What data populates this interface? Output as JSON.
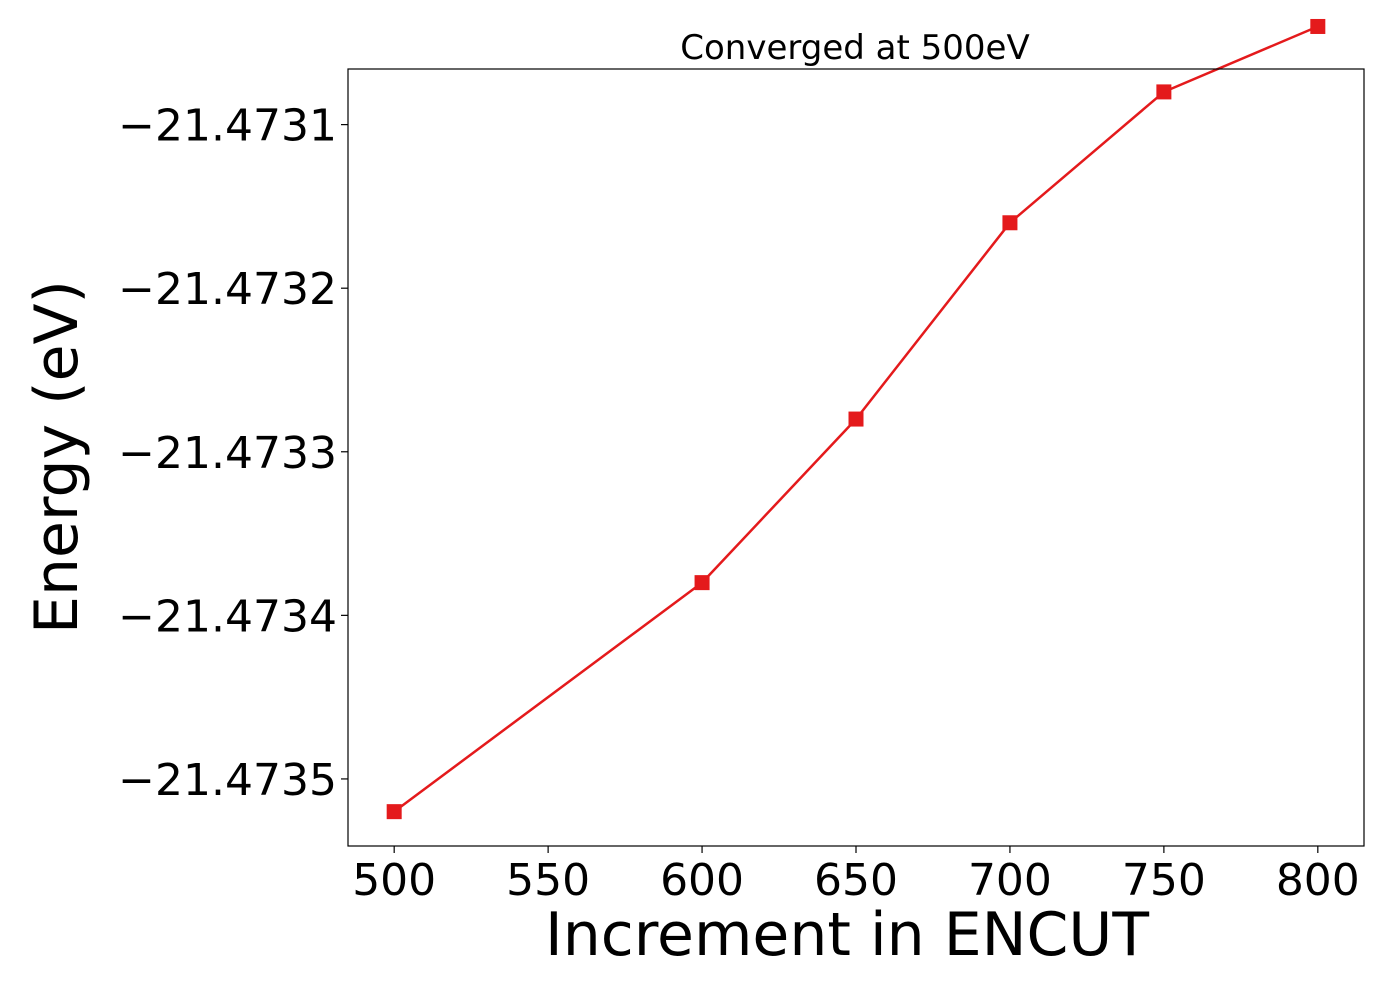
{
  "chart_data": {
    "type": "line",
    "title": "Converged at 500eV",
    "xlabel": "Increment in ENCUT",
    "ylabel": "Energy (eV)",
    "x": [
      500,
      600,
      650,
      700,
      750,
      800
    ],
    "series": [
      {
        "name": "",
        "values": [
          -21.47352,
          -21.47338,
          -21.47328,
          -21.47316,
          -21.47308,
          -21.47304
        ],
        "color": "#e41a1c",
        "marker": "square"
      }
    ],
    "xticks": [
      500,
      550,
      600,
      650,
      700,
      750,
      800
    ],
    "xtick_labels": [
      "500",
      "550",
      "600",
      "650",
      "700",
      "750",
      "800"
    ],
    "yticks": [
      -21.4735,
      -21.4734,
      -21.4733,
      -21.4732,
      -21.4731
    ],
    "ytick_labels": [
      "−21.4735",
      "−21.4734",
      "−21.4733",
      "−21.4732",
      "−21.4731"
    ],
    "xlim": [
      485,
      815
    ],
    "ylim": [
      -21.473541,
      -21.473066
    ],
    "grid": false,
    "legend": "none"
  }
}
